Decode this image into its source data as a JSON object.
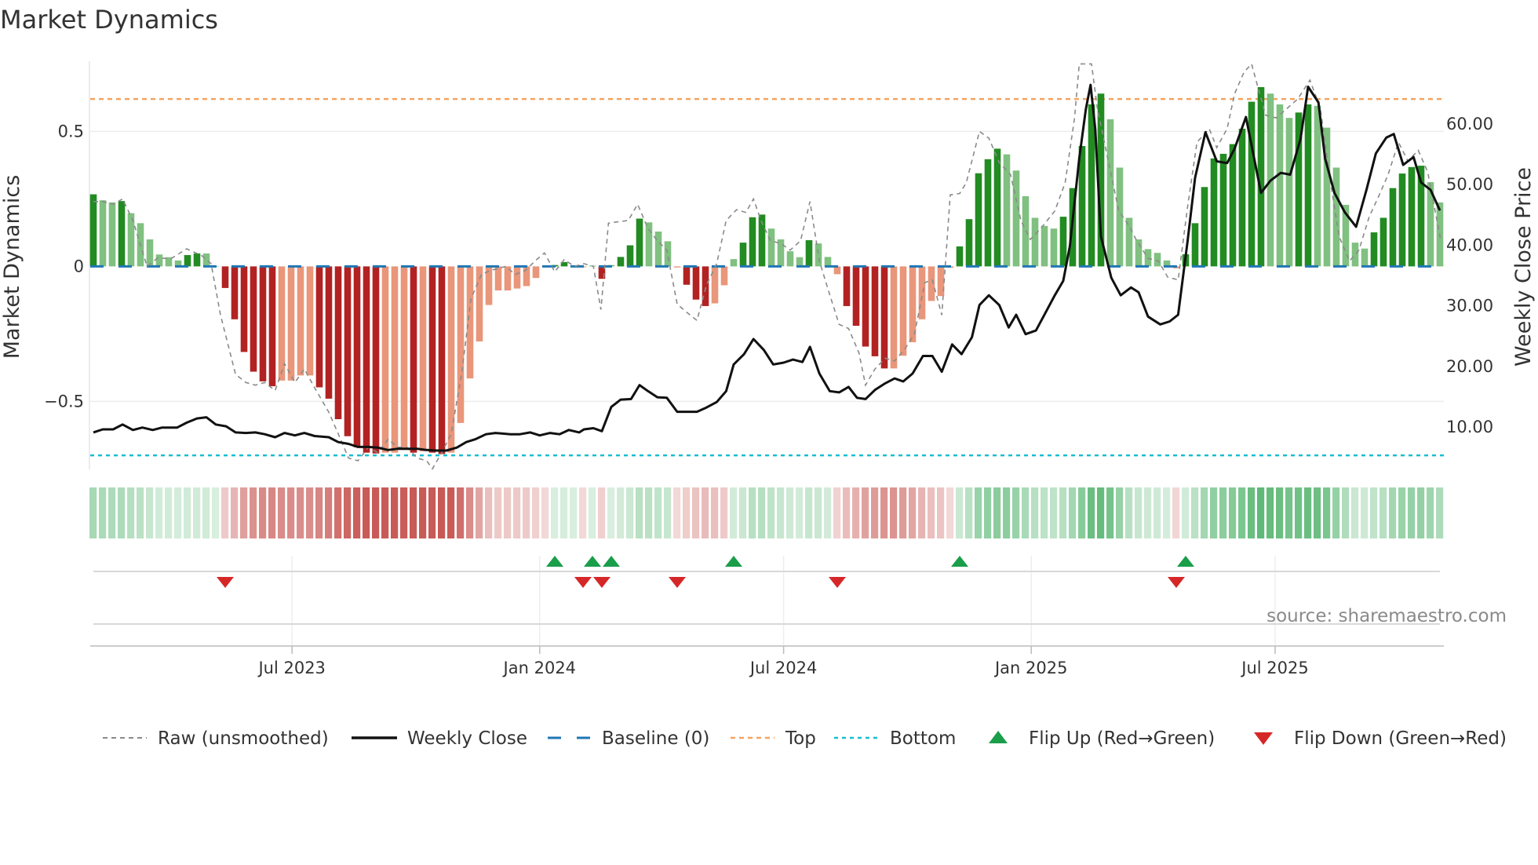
{
  "title": "Market Dynamics",
  "source": "source: sharemaestro.com",
  "colors": {
    "pos_strong": "#228b22",
    "pos_weak": "#80c080",
    "neg_strong": "#b22222",
    "neg_weak": "#e9967a",
    "raw": "#8a8a8a",
    "close": "#111111",
    "baseline": "#1f77b4",
    "top": "#f4a460",
    "bottom": "#17becf",
    "flip_up": "#1a9e4a",
    "flip_down": "#d62728",
    "strip_pos": "60,170,90",
    "strip_neg": "190,60,55"
  },
  "chart_data": {
    "type": "bar",
    "title": "Market Dynamics",
    "x_unit": "week index",
    "xlim": [
      -0.5,
      143.5
    ],
    "x_ticks": [
      {
        "week": 21.1,
        "label": "Jul 2023"
      },
      {
        "week": 47.4,
        "label": "Jan 2024"
      },
      {
        "week": 73.3,
        "label": "Jul 2024"
      },
      {
        "week": 99.6,
        "label": "Jan 2025"
      },
      {
        "week": 125.5,
        "label": "Jul 2025"
      }
    ],
    "left_axis": {
      "label": "Market Dynamics",
      "ylim": [
        -0.752,
        0.76
      ],
      "ticks": [
        {
          "value": 0.5,
          "label": "0.5"
        },
        {
          "value": 0,
          "label": "0"
        },
        {
          "value": -0.5,
          "label": "−0.5"
        }
      ]
    },
    "right_axis": {
      "label": "Weekly Close Price",
      "ylim": [
        2.9,
        70.2
      ],
      "ticks": [
        {
          "value": 60,
          "label": "60.00"
        },
        {
          "value": 50,
          "label": "50.00"
        },
        {
          "value": 40,
          "label": "40.00"
        },
        {
          "value": 30,
          "label": "30.00"
        },
        {
          "value": 20,
          "label": "20.00"
        },
        {
          "value": 10,
          "label": "10.00"
        }
      ]
    },
    "levels": {
      "baseline": 0,
      "top": 0.62,
      "bottom": -0.7
    },
    "dynamics": [
      0.267,
      0.245,
      0.237,
      0.242,
      0.197,
      0.16,
      0.1,
      0.044,
      0.034,
      0.022,
      0.042,
      0.048,
      0.048,
      0,
      -0.08,
      -0.196,
      -0.317,
      -0.39,
      -0.426,
      -0.444,
      -0.423,
      -0.423,
      -0.404,
      -0.404,
      -0.448,
      -0.49,
      -0.566,
      -0.629,
      -0.67,
      -0.69,
      -0.693,
      -0.69,
      -0.69,
      -0.68,
      -0.69,
      -0.685,
      -0.69,
      -0.695,
      -0.69,
      -0.58,
      -0.415,
      -0.278,
      -0.143,
      -0.089,
      -0.089,
      -0.082,
      -0.073,
      -0.043,
      -0.004,
      0.005,
      0.016,
      0.004,
      -0.003,
      0.003,
      -0.046,
      0.005,
      0.035,
      0.078,
      0.177,
      0.163,
      0.129,
      0.093,
      -0.004,
      -0.068,
      -0.123,
      -0.147,
      -0.137,
      -0.07,
      0.027,
      0.088,
      0.182,
      0.192,
      0.14,
      0.1,
      0.056,
      0.034,
      0.097,
      0.085,
      0.035,
      -0.029,
      -0.147,
      -0.22,
      -0.297,
      -0.333,
      -0.378,
      -0.378,
      -0.331,
      -0.281,
      -0.196,
      -0.128,
      -0.11,
      -0.005,
      0.074,
      0.175,
      0.345,
      0.397,
      0.436,
      0.415,
      0.355,
      0.26,
      0.18,
      0.15,
      0.14,
      0.184,
      0.29,
      0.446,
      0.6,
      0.64,
      0.545,
      0.366,
      0.18,
      0.1,
      0.064,
      0.05,
      0.022,
      -0.007,
      0.045,
      0.16,
      0.294,
      0.4,
      0.417,
      0.453,
      0.51,
      0.61,
      0.664,
      0.64,
      0.6,
      0.55,
      0.57,
      0.6,
      0.595,
      0.514,
      0.366,
      0.228,
      0.088,
      0.066,
      0.126,
      0.18,
      0.29,
      0.344,
      0.368,
      0.373,
      0.312,
      0.237
    ],
    "raw": [
      [
        0,
        0.24
      ],
      [
        1,
        0.24
      ],
      [
        2.1,
        0.23
      ],
      [
        3.1,
        0.25
      ],
      [
        4.2,
        0.17
      ],
      [
        5.7,
        0.0
      ],
      [
        6.8,
        0.03
      ],
      [
        8.3,
        0.03
      ],
      [
        9.9,
        0.065
      ],
      [
        11.5,
        0.04
      ],
      [
        12.5,
        0.01
      ],
      [
        13.5,
        -0.18
      ],
      [
        15.1,
        -0.4
      ],
      [
        16.2,
        -0.43
      ],
      [
        17.2,
        -0.44
      ],
      [
        18.2,
        -0.43
      ],
      [
        19.3,
        -0.46
      ],
      [
        20.3,
        -0.36
      ],
      [
        21.4,
        -0.43
      ],
      [
        22.4,
        -0.38
      ],
      [
        23.5,
        -0.45
      ],
      [
        25,
        -0.54
      ],
      [
        26,
        -0.62
      ],
      [
        27.1,
        -0.71
      ],
      [
        28.1,
        -0.72
      ],
      [
        29.2,
        -0.67
      ],
      [
        30.2,
        -0.69
      ],
      [
        31.3,
        -0.64
      ],
      [
        32.3,
        -0.67
      ],
      [
        33.3,
        -0.67
      ],
      [
        34.4,
        -0.71
      ],
      [
        35.4,
        -0.72
      ],
      [
        36,
        -0.75
      ],
      [
        37,
        -0.69
      ],
      [
        38,
        -0.62
      ],
      [
        39.1,
        -0.4
      ],
      [
        40.1,
        -0.12
      ],
      [
        41.2,
        -0.03
      ],
      [
        42.2,
        -0.015
      ],
      [
        43.8,
        0.0
      ],
      [
        44.8,
        -0.03
      ],
      [
        45.9,
        -0.015
      ],
      [
        46.9,
        0.02
      ],
      [
        47.9,
        0.05
      ],
      [
        49,
        -0.02
      ],
      [
        50,
        0.025
      ],
      [
        51.1,
        0.0
      ],
      [
        52.1,
        0.01
      ],
      [
        53.1,
        0.0
      ],
      [
        53.9,
        -0.16
      ],
      [
        54.7,
        0.16
      ],
      [
        55.7,
        0.165
      ],
      [
        56.8,
        0.17
      ],
      [
        57.8,
        0.23
      ],
      [
        58.9,
        0.14
      ],
      [
        59.9,
        0.095
      ],
      [
        60.9,
        0.06
      ],
      [
        62,
        -0.14
      ],
      [
        63,
        -0.17
      ],
      [
        64.1,
        -0.2
      ],
      [
        65.1,
        -0.07
      ],
      [
        66.2,
        0.01
      ],
      [
        67.2,
        0.17
      ],
      [
        68.3,
        0.21
      ],
      [
        69.3,
        0.2
      ],
      [
        70.1,
        0.25
      ],
      [
        70.9,
        0.17
      ],
      [
        71.9,
        0.095
      ],
      [
        73,
        0.085
      ],
      [
        74,
        0.06
      ],
      [
        75.1,
        0.095
      ],
      [
        76.1,
        0.24
      ],
      [
        77.1,
        0.02
      ],
      [
        78.2,
        -0.105
      ],
      [
        79.2,
        -0.215
      ],
      [
        80.2,
        -0.23
      ],
      [
        81.3,
        -0.32
      ],
      [
        82,
        -0.44
      ],
      [
        83,
        -0.38
      ],
      [
        84.1,
        -0.34
      ],
      [
        85.1,
        -0.35
      ],
      [
        86.2,
        -0.305
      ],
      [
        87.2,
        -0.25
      ],
      [
        88.3,
        -0.06
      ],
      [
        89.1,
        -0.05
      ],
      [
        90.1,
        -0.18
      ],
      [
        91,
        0.265
      ],
      [
        92,
        0.27
      ],
      [
        92.7,
        0.31
      ],
      [
        94.1,
        0.5
      ],
      [
        95.1,
        0.475
      ],
      [
        96.2,
        0.385
      ],
      [
        97.4,
        0.34
      ],
      [
        98.5,
        0.17
      ],
      [
        99.5,
        0.1
      ],
      [
        100.6,
        0.14
      ],
      [
        102.1,
        0.205
      ],
      [
        103.2,
        0.31
      ],
      [
        104.2,
        0.55
      ],
      [
        104.7,
        0.75
      ],
      [
        106,
        0.75
      ],
      [
        106.6,
        0.59
      ],
      [
        107.9,
        0.37
      ],
      [
        108.9,
        0.205
      ],
      [
        110,
        0.15
      ],
      [
        110.8,
        0.095
      ],
      [
        112,
        0.03
      ],
      [
        113.1,
        0.02
      ],
      [
        114.1,
        -0.04
      ],
      [
        115.2,
        -0.05
      ],
      [
        116.2,
        0.22
      ],
      [
        117.2,
        0.46
      ],
      [
        118.5,
        0.51
      ],
      [
        119.3,
        0.44
      ],
      [
        120.4,
        0.51
      ],
      [
        121.2,
        0.64
      ],
      [
        122.2,
        0.72
      ],
      [
        123,
        0.75
      ],
      [
        123.7,
        0.66
      ],
      [
        124.5,
        0.56
      ],
      [
        125.6,
        0.55
      ],
      [
        126.6,
        0.58
      ],
      [
        127.9,
        0.62
      ],
      [
        129.2,
        0.69
      ],
      [
        130.3,
        0.585
      ],
      [
        131.3,
        0.33
      ],
      [
        132.3,
        0.11
      ],
      [
        133.4,
        0.02
      ],
      [
        134.4,
        0.06
      ],
      [
        135.5,
        0.185
      ],
      [
        136.5,
        0.26
      ],
      [
        137.5,
        0.34
      ],
      [
        138.6,
        0.46
      ],
      [
        139.6,
        0.39
      ],
      [
        140.7,
        0.43
      ],
      [
        141.7,
        0.35
      ],
      [
        143.1,
        0.095
      ]
    ],
    "close": [
      [
        0,
        9.0
      ],
      [
        1,
        9.5
      ],
      [
        2.1,
        9.5
      ],
      [
        3.1,
        10.3
      ],
      [
        4.2,
        9.4
      ],
      [
        5.2,
        9.8
      ],
      [
        6.3,
        9.4
      ],
      [
        7.3,
        9.8
      ],
      [
        8.9,
        9.8
      ],
      [
        9.9,
        10.6
      ],
      [
        11,
        11.3
      ],
      [
        12,
        11.5
      ],
      [
        13,
        10.3
      ],
      [
        14.1,
        10.0
      ],
      [
        15.1,
        9.0
      ],
      [
        16.2,
        8.9
      ],
      [
        17.2,
        9.0
      ],
      [
        18.2,
        8.7
      ],
      [
        19.3,
        8.2
      ],
      [
        20.3,
        8.9
      ],
      [
        21.4,
        8.5
      ],
      [
        22.4,
        8.9
      ],
      [
        23.5,
        8.4
      ],
      [
        25,
        8.2
      ],
      [
        26,
        7.4
      ],
      [
        27.1,
        7.1
      ],
      [
        28.1,
        6.6
      ],
      [
        29.2,
        6.6
      ],
      [
        30.2,
        6.5
      ],
      [
        31.3,
        6.1
      ],
      [
        32.3,
        6.3
      ],
      [
        33.3,
        6.3
      ],
      [
        34.4,
        6.3
      ],
      [
        35.4,
        6.1
      ],
      [
        36.5,
        6.0
      ],
      [
        37.5,
        6.0
      ],
      [
        38.6,
        6.5
      ],
      [
        39.6,
        7.4
      ],
      [
        40.6,
        7.9
      ],
      [
        41.7,
        8.7
      ],
      [
        42.7,
        8.9
      ],
      [
        44.3,
        8.7
      ],
      [
        45.3,
        8.7
      ],
      [
        46.4,
        9.0
      ],
      [
        47.4,
        8.5
      ],
      [
        48.5,
        8.9
      ],
      [
        49.5,
        8.7
      ],
      [
        50.5,
        9.4
      ],
      [
        51.6,
        9.0
      ],
      [
        52.1,
        9.5
      ],
      [
        53.1,
        9.7
      ],
      [
        54,
        9.2
      ],
      [
        55,
        13.2
      ],
      [
        56,
        14.4
      ],
      [
        57.1,
        14.5
      ],
      [
        58,
        16.8
      ],
      [
        58.9,
        15.8
      ],
      [
        59.9,
        14.8
      ],
      [
        60.9,
        14.7
      ],
      [
        62,
        12.4
      ],
      [
        63,
        12.4
      ],
      [
        64.1,
        12.4
      ],
      [
        65.1,
        13.1
      ],
      [
        66.2,
        14.0
      ],
      [
        67.2,
        15.8
      ],
      [
        68,
        20.2
      ],
      [
        69.1,
        21.9
      ],
      [
        70.1,
        24.4
      ],
      [
        71.2,
        22.6
      ],
      [
        72.2,
        20.2
      ],
      [
        73.3,
        20.5
      ],
      [
        74.3,
        21.0
      ],
      [
        75.3,
        20.6
      ],
      [
        76.1,
        23.1
      ],
      [
        77.1,
        18.7
      ],
      [
        78.2,
        15.8
      ],
      [
        79.2,
        15.6
      ],
      [
        80.2,
        16.5
      ],
      [
        81.1,
        14.7
      ],
      [
        82,
        14.5
      ],
      [
        83,
        16.0
      ],
      [
        84.1,
        17.1
      ],
      [
        85.1,
        17.9
      ],
      [
        86,
        17.4
      ],
      [
        87,
        18.7
      ],
      [
        88.1,
        21.6
      ],
      [
        89.1,
        21.6
      ],
      [
        90.1,
        19.0
      ],
      [
        91.2,
        23.5
      ],
      [
        92.2,
        21.9
      ],
      [
        93.3,
        24.7
      ],
      [
        94.1,
        30.0
      ],
      [
        95.1,
        31.6
      ],
      [
        96.2,
        30.0
      ],
      [
        97.2,
        26.3
      ],
      [
        98,
        28.4
      ],
      [
        99,
        25.2
      ],
      [
        100.1,
        25.8
      ],
      [
        101.1,
        28.7
      ],
      [
        102.1,
        31.6
      ],
      [
        103,
        34.0
      ],
      [
        103.7,
        39.7
      ],
      [
        104.7,
        54.2
      ],
      [
        105.4,
        62.3
      ],
      [
        105.9,
        66.3
      ],
      [
        106.4,
        59.0
      ],
      [
        107,
        41.3
      ],
      [
        108.1,
        34.5
      ],
      [
        109.1,
        31.6
      ],
      [
        110.2,
        32.9
      ],
      [
        111,
        32.1
      ],
      [
        112,
        28.1
      ],
      [
        113.3,
        26.8
      ],
      [
        114.3,
        27.3
      ],
      [
        115.2,
        28.4
      ],
      [
        116.2,
        40.5
      ],
      [
        117,
        51.0
      ],
      [
        118.1,
        58.5
      ],
      [
        119.3,
        53.7
      ],
      [
        120.4,
        53.4
      ],
      [
        121.2,
        55.8
      ],
      [
        122.4,
        61.0
      ],
      [
        124,
        48.5
      ],
      [
        125,
        50.5
      ],
      [
        126.1,
        51.8
      ],
      [
        127.1,
        51.5
      ],
      [
        128.2,
        57.4
      ],
      [
        129,
        66.0
      ],
      [
        130.1,
        63.4
      ],
      [
        130.8,
        54.2
      ],
      [
        131.8,
        48.5
      ],
      [
        132.9,
        45.3
      ],
      [
        134.1,
        42.9
      ],
      [
        135.2,
        49.0
      ],
      [
        136.2,
        55.0
      ],
      [
        137.3,
        57.6
      ],
      [
        138.1,
        58.2
      ],
      [
        139.1,
        53.1
      ],
      [
        140.2,
        54.4
      ],
      [
        141,
        50.2
      ],
      [
        142,
        49.0
      ],
      [
        143,
        45.6
      ]
    ],
    "flip_up_weeks": [
      49,
      53,
      55,
      68,
      92,
      116
    ],
    "flip_down_weeks": [
      14,
      52,
      54,
      62,
      79,
      115
    ],
    "legend": {
      "placement": "bottom",
      "items": [
        {
          "key": "raw",
          "label": "Raw (unsmoothed)"
        },
        {
          "key": "close",
          "label": "Weekly Close"
        },
        {
          "key": "baseline",
          "label": "Baseline (0)"
        },
        {
          "key": "top",
          "label": "Top"
        },
        {
          "key": "bottom",
          "label": "Bottom"
        },
        {
          "key": "flip_up",
          "label": "Flip Up (Red→Green)"
        },
        {
          "key": "flip_down",
          "label": "Flip Down (Green→Red)"
        }
      ]
    }
  }
}
